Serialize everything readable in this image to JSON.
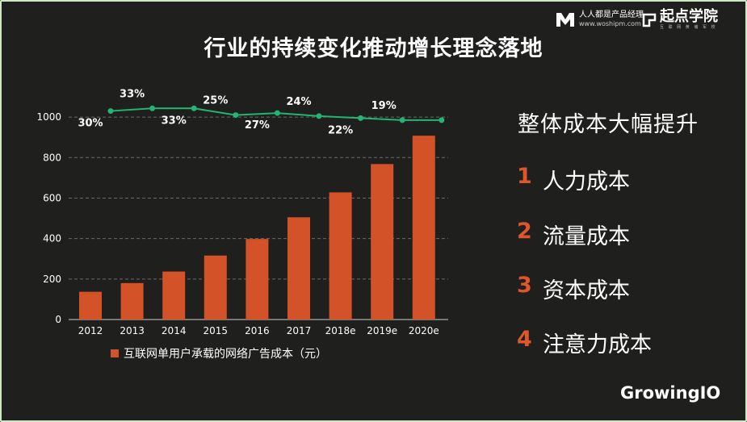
{
  "title": "行业的持续变化推动增长理念落地",
  "brand_left": {
    "name": "人人都是产品经理",
    "url": "www.woshipm.com"
  },
  "brand_right": {
    "name": "起点学院",
    "sub": "互 联 网 黄 埔 军 校"
  },
  "right_panel": {
    "heading": "整体成本大幅提升",
    "items": [
      {
        "num": "1",
        "label": "人力成本"
      },
      {
        "num": "2",
        "label": "流量成本"
      },
      {
        "num": "3",
        "label": "资本成本"
      },
      {
        "num": "4",
        "label": "注意力成本"
      }
    ]
  },
  "footer_brand": "GrowingIO",
  "chart_data": {
    "type": "bar",
    "categories": [
      "2012",
      "2013",
      "2014",
      "2015",
      "2016",
      "2017",
      "2018e",
      "2019e",
      "2020e"
    ],
    "series": [
      {
        "name": "互联网单用户承载的网络广告成本（元）",
        "type": "bar",
        "values": [
          137,
          180,
          237,
          316,
          398,
          505,
          628,
          768,
          908
        ]
      },
      {
        "name": "",
        "type": "line",
        "values": [
          1030,
          1043,
          1043,
          1010,
          1020,
          1005,
          995,
          985,
          985
        ],
        "labels": [
          "30%",
          "33%",
          "33%",
          "25%",
          "27%",
          "24%",
          "22%",
          "19%",
          ""
        ]
      }
    ],
    "yticks": [
      0,
      200,
      400,
      600,
      800,
      1000
    ],
    "ylim": [
      0,
      1100
    ],
    "grid": true,
    "legend": "bottom-left",
    "colors": {
      "bar": "#d35227",
      "line": "#22b573"
    }
  }
}
